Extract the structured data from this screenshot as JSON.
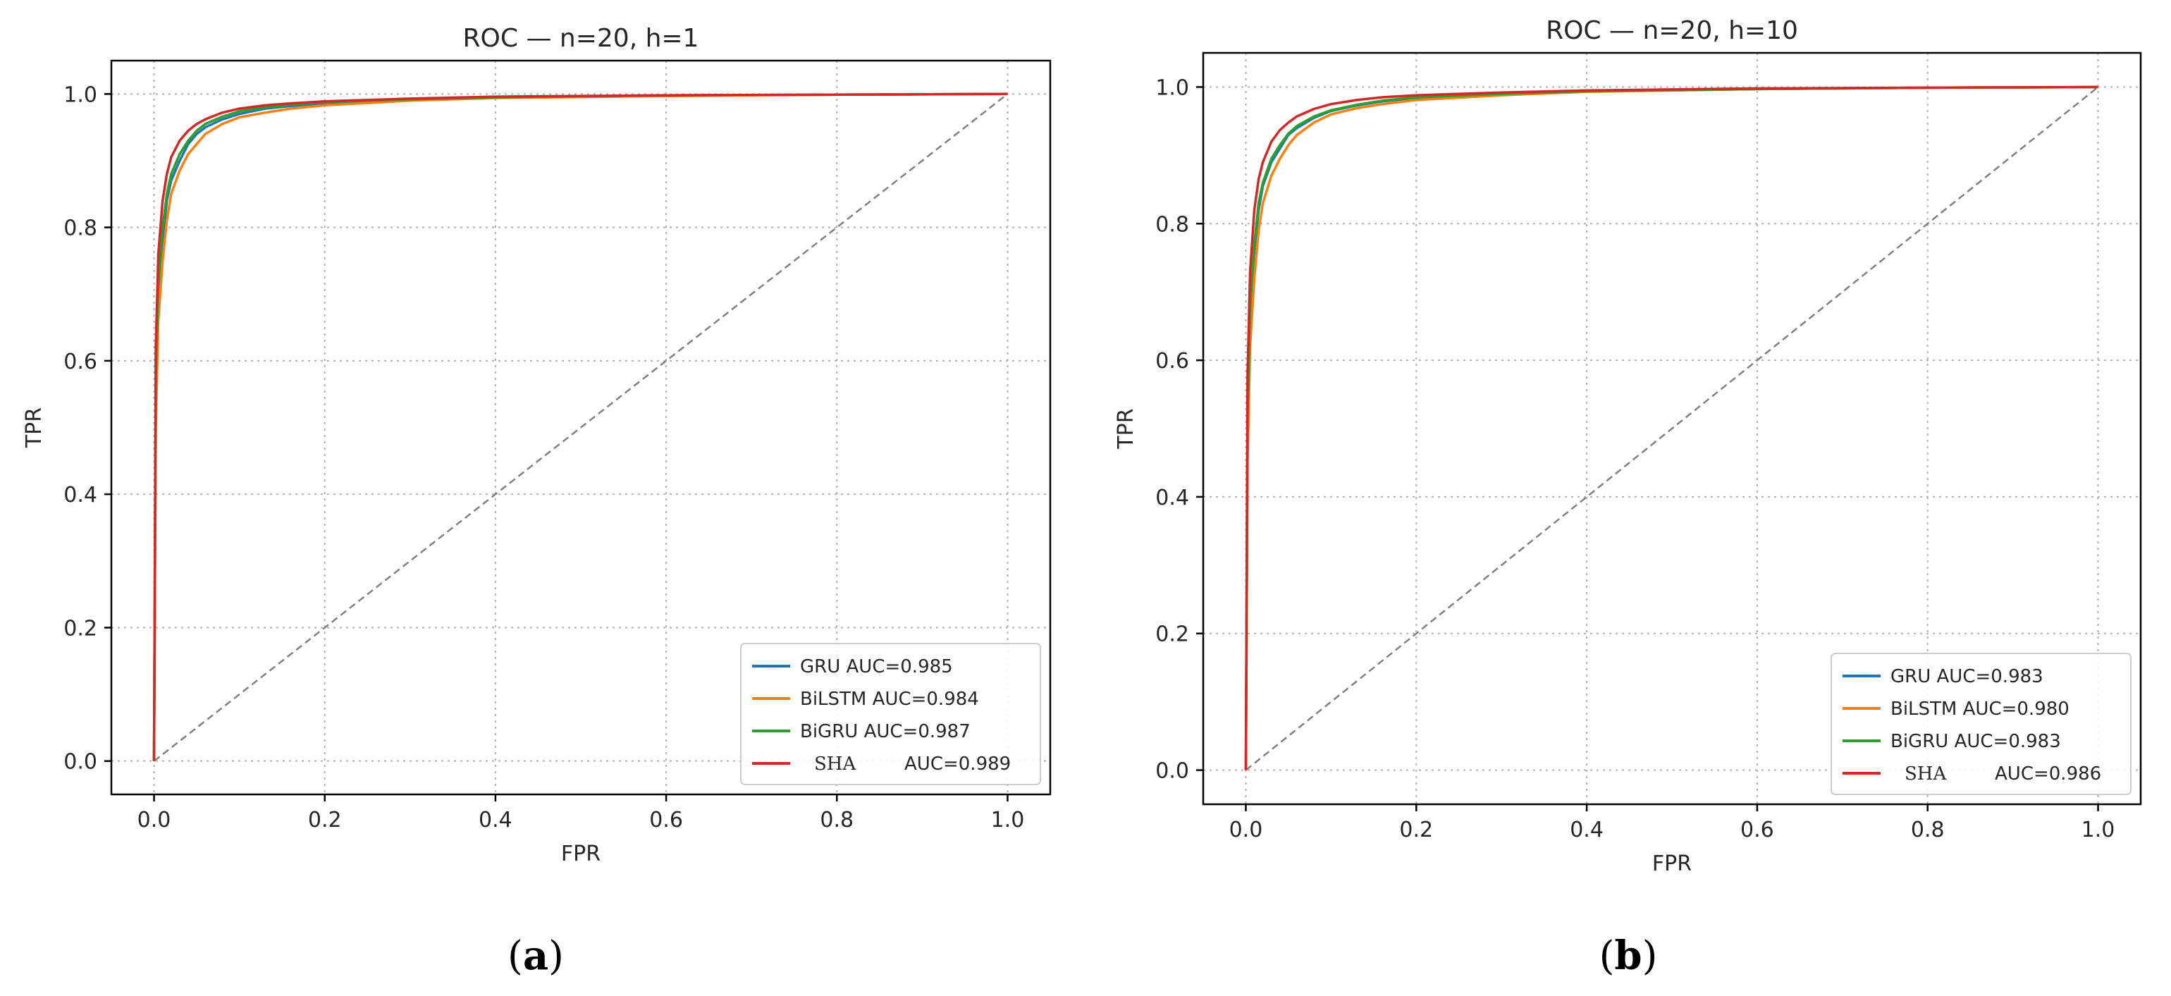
{
  "chart_data": [
    {
      "type": "line",
      "title": "ROC — n=20, h=1",
      "xlabel": "FPR",
      "ylabel": "TPR",
      "xlim": [
        -0.05,
        1.05
      ],
      "ylim": [
        -0.05,
        1.05
      ],
      "xticks": [
        "0.0",
        "0.2",
        "0.4",
        "0.6",
        "0.8",
        "1.0"
      ],
      "yticks": [
        "0.0",
        "0.2",
        "0.4",
        "0.6",
        "0.8",
        "1.0"
      ],
      "grid": true,
      "legend_position": "bottom-right",
      "caption": {
        "open": "(",
        "letter": "a",
        "close": ")"
      },
      "series": [
        {
          "name": "GRU AUC=0.985",
          "color": "#1f77b4",
          "x": [
            0,
            0.002,
            0.005,
            0.01,
            0.015,
            0.02,
            0.03,
            0.04,
            0.05,
            0.06,
            0.08,
            0.1,
            0.13,
            0.16,
            0.2,
            0.3,
            0.4,
            0.6,
            0.8,
            1.0
          ],
          "y": [
            0,
            0.55,
            0.7,
            0.78,
            0.84,
            0.87,
            0.9,
            0.925,
            0.94,
            0.95,
            0.962,
            0.97,
            0.978,
            0.982,
            0.986,
            0.991,
            0.995,
            0.998,
            0.999,
            1.0
          ]
        },
        {
          "name": "BiLSTM AUC=0.984",
          "color": "#ff7f0e",
          "x": [
            0,
            0.002,
            0.005,
            0.01,
            0.015,
            0.02,
            0.03,
            0.04,
            0.05,
            0.06,
            0.08,
            0.1,
            0.13,
            0.16,
            0.2,
            0.3,
            0.4,
            0.6,
            0.8,
            1.0
          ],
          "y": [
            0,
            0.5,
            0.66,
            0.75,
            0.81,
            0.85,
            0.885,
            0.91,
            0.925,
            0.94,
            0.955,
            0.965,
            0.972,
            0.978,
            0.983,
            0.99,
            0.994,
            0.997,
            0.999,
            1.0
          ]
        },
        {
          "name": "BiGRU AUC=0.987",
          "color": "#2ca02c",
          "x": [
            0,
            0.002,
            0.005,
            0.01,
            0.015,
            0.02,
            0.03,
            0.04,
            0.05,
            0.06,
            0.08,
            0.1,
            0.13,
            0.16,
            0.2,
            0.3,
            0.4,
            0.6,
            0.8,
            1.0
          ],
          "y": [
            0,
            0.58,
            0.72,
            0.8,
            0.85,
            0.88,
            0.91,
            0.93,
            0.945,
            0.955,
            0.966,
            0.974,
            0.98,
            0.984,
            0.988,
            0.992,
            0.995,
            0.998,
            0.999,
            1.0
          ]
        },
        {
          "name": "SHA",
          "name_suffix": "AUC=0.989",
          "color": "#d62728",
          "x": [
            0,
            0.002,
            0.005,
            0.01,
            0.015,
            0.02,
            0.03,
            0.04,
            0.05,
            0.06,
            0.08,
            0.1,
            0.13,
            0.16,
            0.2,
            0.3,
            0.4,
            0.6,
            0.8,
            1.0
          ],
          "y": [
            0,
            0.62,
            0.76,
            0.84,
            0.88,
            0.905,
            0.93,
            0.945,
            0.955,
            0.962,
            0.972,
            0.978,
            0.983,
            0.986,
            0.989,
            0.993,
            0.996,
            0.998,
            0.999,
            1.0
          ]
        }
      ]
    },
    {
      "type": "line",
      "title": "ROC — n=20, h=10",
      "xlabel": "FPR",
      "ylabel": "TPR",
      "xlim": [
        -0.05,
        1.05
      ],
      "ylim": [
        -0.05,
        1.05
      ],
      "xticks": [
        "0.0",
        "0.2",
        "0.4",
        "0.6",
        "0.8",
        "1.0"
      ],
      "yticks": [
        "0.0",
        "0.2",
        "0.4",
        "0.6",
        "0.8",
        "1.0"
      ],
      "grid": true,
      "legend_position": "bottom-right",
      "caption": {
        "open": "(",
        "letter": "b",
        "close": ")"
      },
      "series": [
        {
          "name": "GRU AUC=0.983",
          "color": "#1f77b4",
          "x": [
            0,
            0.002,
            0.005,
            0.01,
            0.015,
            0.02,
            0.03,
            0.04,
            0.05,
            0.06,
            0.08,
            0.1,
            0.13,
            0.16,
            0.2,
            0.3,
            0.4,
            0.6,
            0.8,
            1.0
          ],
          "y": [
            0,
            0.5,
            0.66,
            0.76,
            0.82,
            0.855,
            0.89,
            0.91,
            0.93,
            0.94,
            0.955,
            0.965,
            0.973,
            0.979,
            0.984,
            0.99,
            0.994,
            0.997,
            0.999,
            1.0
          ]
        },
        {
          "name": "BiLSTM AUC=0.980",
          "color": "#ff7f0e",
          "x": [
            0,
            0.002,
            0.005,
            0.01,
            0.015,
            0.02,
            0.03,
            0.04,
            0.05,
            0.06,
            0.08,
            0.1,
            0.13,
            0.16,
            0.2,
            0.3,
            0.4,
            0.6,
            0.8,
            1.0
          ],
          "y": [
            0,
            0.45,
            0.62,
            0.72,
            0.79,
            0.83,
            0.87,
            0.895,
            0.915,
            0.93,
            0.948,
            0.96,
            0.969,
            0.975,
            0.981,
            0.988,
            0.993,
            0.997,
            0.999,
            1.0
          ]
        },
        {
          "name": "BiGRU AUC=0.983",
          "color": "#2ca02c",
          "x": [
            0,
            0.002,
            0.005,
            0.01,
            0.015,
            0.02,
            0.03,
            0.04,
            0.05,
            0.06,
            0.08,
            0.1,
            0.13,
            0.16,
            0.2,
            0.3,
            0.4,
            0.6,
            0.8,
            1.0
          ],
          "y": [
            0,
            0.52,
            0.68,
            0.77,
            0.83,
            0.86,
            0.895,
            0.915,
            0.932,
            0.943,
            0.957,
            0.966,
            0.974,
            0.98,
            0.985,
            0.99,
            0.994,
            0.997,
            0.999,
            1.0
          ]
        },
        {
          "name": "SHA",
          "name_suffix": "AUC=0.986",
          "color": "#d62728",
          "x": [
            0,
            0.002,
            0.005,
            0.01,
            0.015,
            0.02,
            0.03,
            0.04,
            0.05,
            0.06,
            0.08,
            0.1,
            0.13,
            0.16,
            0.2,
            0.3,
            0.4,
            0.6,
            0.8,
            1.0
          ],
          "y": [
            0,
            0.58,
            0.73,
            0.82,
            0.865,
            0.89,
            0.92,
            0.937,
            0.948,
            0.957,
            0.968,
            0.975,
            0.981,
            0.985,
            0.988,
            0.992,
            0.995,
            0.998,
            0.999,
            1.0
          ]
        }
      ]
    }
  ]
}
